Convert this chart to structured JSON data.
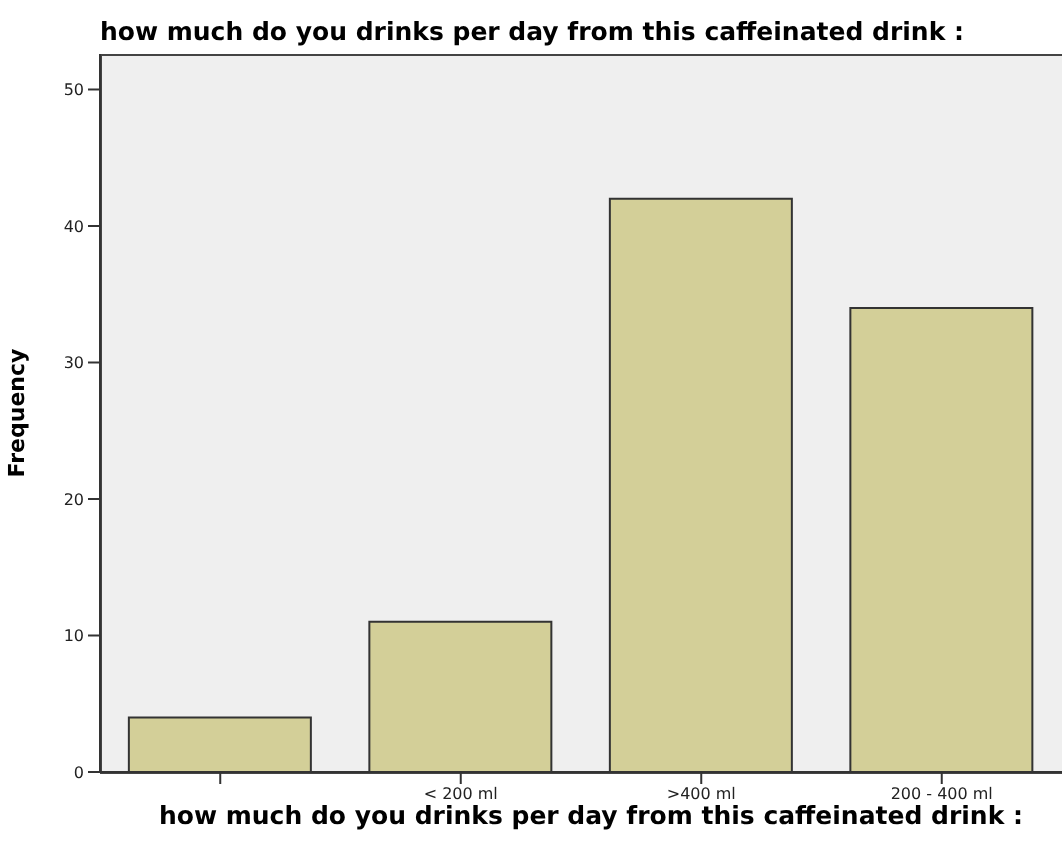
{
  "chart_data": {
    "type": "bar",
    "title": "how much do you drinks per day from this caffeinated drink :",
    "xlabel": "how much do you drinks per day from this caffeinated drink :",
    "ylabel": "Frequency",
    "categories": [
      null,
      "< 200 ml",
      ">400 ml",
      "200 - 400 ml"
    ],
    "values": [
      4,
      11,
      42,
      34
    ],
    "color": "#d3cf98",
    "ylim": [
      0,
      52.6
    ],
    "yticks": [
      0,
      10,
      20,
      30,
      40,
      50
    ],
    "grid": false,
    "legend": false
  }
}
